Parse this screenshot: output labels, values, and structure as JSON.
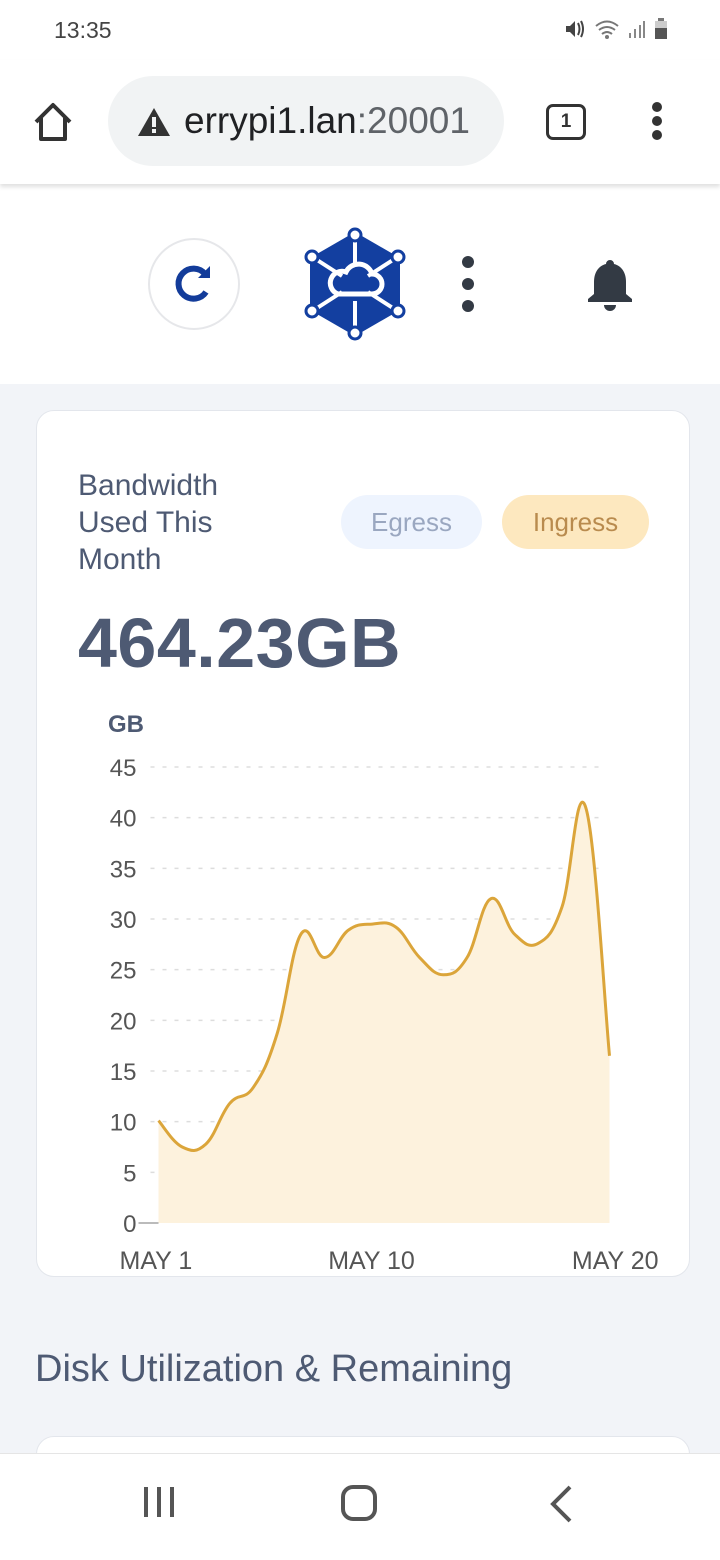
{
  "status_bar": {
    "time": "13:35",
    "icons": [
      "mute-icon",
      "wifi-icon",
      "signal-icon",
      "battery-icon"
    ]
  },
  "browser": {
    "url_host": "errypi1.lan",
    "url_port": ":20001",
    "tab_count": "1"
  },
  "card": {
    "title": "Bandwidth Used This Month",
    "egress_label": "Egress",
    "ingress_label": "Ingress",
    "total": "464.23GB",
    "colors": {
      "ingress_line": "#dba53a",
      "ingress_fill": "#fdf2dd",
      "egress_pill": "#eef4fe",
      "ingress_pill": "#fde8bf",
      "text": "#4e5a73"
    }
  },
  "chart_data": {
    "type": "area",
    "ylabel": "GB",
    "ylim": [
      0,
      45
    ],
    "yticks": [
      "0",
      "5",
      "10",
      "15",
      "20",
      "25",
      "30",
      "35",
      "40",
      "45"
    ],
    "xtick_labels": [
      "MAY 1",
      "MAY 10",
      "MAY 20"
    ],
    "x": [
      "May 1",
      "May 2",
      "May 3",
      "May 4",
      "May 5",
      "May 6",
      "May 7",
      "May 8",
      "May 9",
      "May 10",
      "May 11",
      "May 12",
      "May 13",
      "May 14",
      "May 15",
      "May 16",
      "May 17",
      "May 18",
      "May 19",
      "May 20"
    ],
    "series": [
      {
        "values": [
          10.1,
          7.5,
          7.8,
          11.8,
          13.4,
          18.7,
          28.5,
          26.2,
          28.9,
          29.5,
          29.2,
          26.2,
          24.5,
          26.2,
          32.0,
          28.5,
          27.6,
          31.2,
          41.0,
          16.5
        ]
      }
    ],
    "grid": "horizontal-dashed"
  },
  "disk_section": {
    "title": "Disk Utilization & Remaining"
  }
}
